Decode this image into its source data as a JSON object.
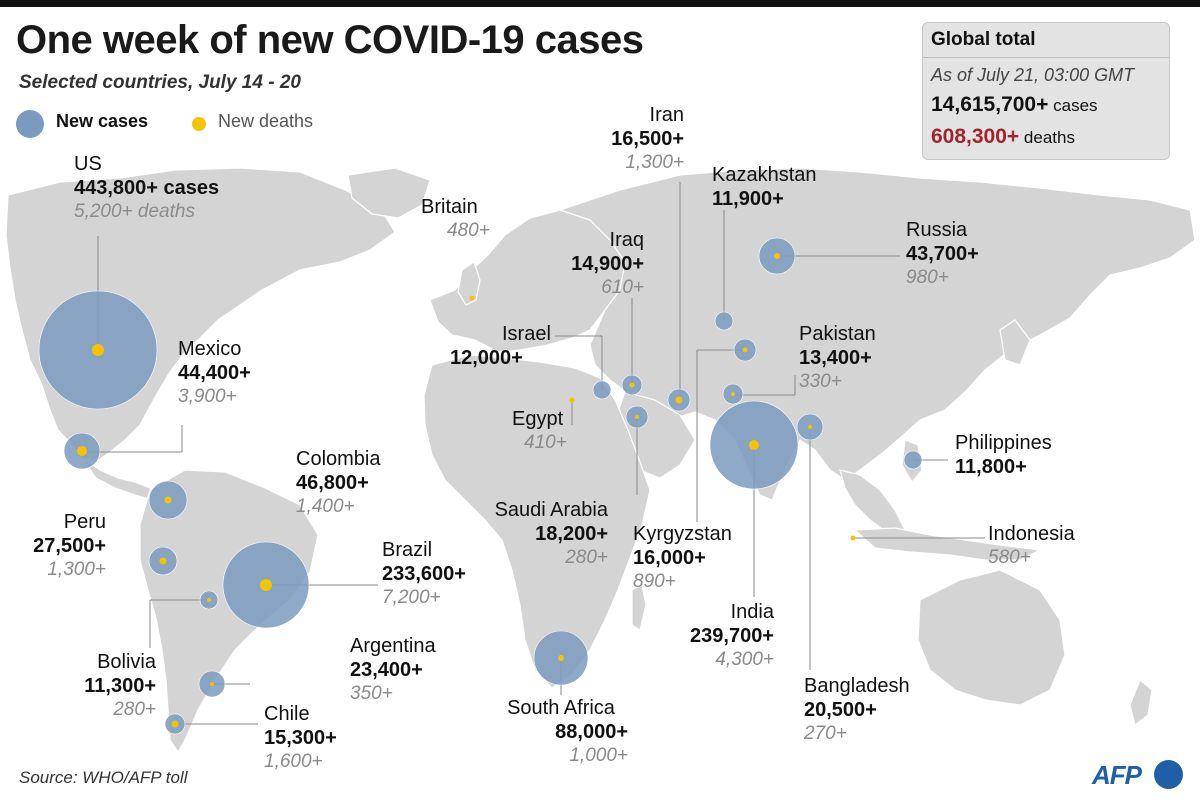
{
  "header": {
    "title": "One week of new COVID-19 cases",
    "subtitle": "Selected countries, July 14 - 20"
  },
  "legend": {
    "cases_label": "New cases",
    "deaths_label": "New deaths"
  },
  "global_box": {
    "title": "Global total",
    "as_of": "As of July 21, 03:00 GMT",
    "cases_value": "14,615,700+",
    "cases_unit": "cases",
    "deaths_value": "608,300+",
    "deaths_unit": "deaths"
  },
  "colors": {
    "cases_bubble": "#7b9ac0",
    "deaths_dot": "#f5c400",
    "land": "#d4d4d4",
    "deaths_total": "#a3242b"
  },
  "countries": {
    "us": {
      "name": "US",
      "cases": "443,800+ cases",
      "deaths": "5,200+ deaths",
      "cases_num": 443800,
      "deaths_num": 5200
    },
    "mexico": {
      "name": "Mexico",
      "cases": "44,400+",
      "deaths": "3,900+",
      "cases_num": 44400,
      "deaths_num": 3900
    },
    "colombia": {
      "name": "Colombia",
      "cases": "46,800+",
      "deaths": "1,400+",
      "cases_num": 46800,
      "deaths_num": 1400
    },
    "peru": {
      "name": "Peru",
      "cases": "27,500+",
      "deaths": "1,300+",
      "cases_num": 27500,
      "deaths_num": 1300
    },
    "brazil": {
      "name": "Brazil",
      "cases": "233,600+",
      "deaths": "7,200+",
      "cases_num": 233600,
      "deaths_num": 7200
    },
    "bolivia": {
      "name": "Bolivia",
      "cases": "11,300+",
      "deaths": "280+",
      "cases_num": 11300,
      "deaths_num": 280
    },
    "argentina": {
      "name": "Argentina",
      "cases": "23,400+",
      "deaths": "350+",
      "cases_num": 23400,
      "deaths_num": 350
    },
    "chile": {
      "name": "Chile",
      "cases": "15,300+",
      "deaths": "1,600+",
      "cases_num": 15300,
      "deaths_num": 1600
    },
    "britain": {
      "name": "Britain",
      "deaths": "480+",
      "deaths_num": 480
    },
    "israel": {
      "name": "Israel",
      "cases": "12,000+",
      "cases_num": 12000
    },
    "egypt": {
      "name": "Egypt",
      "deaths": "410+",
      "deaths_num": 410
    },
    "iran": {
      "name": "Iran",
      "cases": "16,500+",
      "deaths": "1,300+",
      "cases_num": 16500,
      "deaths_num": 1300
    },
    "iraq": {
      "name": "Iraq",
      "cases": "14,900+",
      "deaths": "610+",
      "cases_num": 14900,
      "deaths_num": 610
    },
    "saudi_arabia": {
      "name": "Saudi Arabia",
      "cases": "18,200+",
      "deaths": "280+",
      "cases_num": 18200,
      "deaths_num": 280
    },
    "south_africa": {
      "name": "South Africa",
      "cases": "88,000+",
      "deaths": "1,000+",
      "cases_num": 88000,
      "deaths_num": 1000
    },
    "kazakhstan": {
      "name": "Kazakhstan",
      "cases": "11,900+",
      "cases_num": 11900
    },
    "kyrgyzstan": {
      "name": "Kyrgyzstan",
      "cases": "16,000+",
      "deaths": "890+",
      "cases_num": 16000,
      "deaths_num": 890
    },
    "russia": {
      "name": "Russia",
      "cases": "43,700+",
      "deaths": "980+",
      "cases_num": 43700,
      "deaths_num": 980
    },
    "pakistan": {
      "name": "Pakistan",
      "cases": "13,400+",
      "deaths": "330+",
      "cases_num": 13400,
      "deaths_num": 330
    },
    "india": {
      "name": "India",
      "cases": "239,700+",
      "deaths": "4,300+",
      "cases_num": 239700,
      "deaths_num": 4300
    },
    "bangladesh": {
      "name": "Bangladesh",
      "cases": "20,500+",
      "deaths": "270+",
      "cases_num": 20500,
      "deaths_num": 270
    },
    "philippines": {
      "name": "Philippines",
      "cases": "11,800+",
      "cases_num": 11800
    },
    "indonesia": {
      "name": "Indonesia",
      "deaths": "580+",
      "deaths_num": 580
    }
  },
  "footer": {
    "source": "Source: WHO/AFP toll",
    "logo": "AFP"
  }
}
